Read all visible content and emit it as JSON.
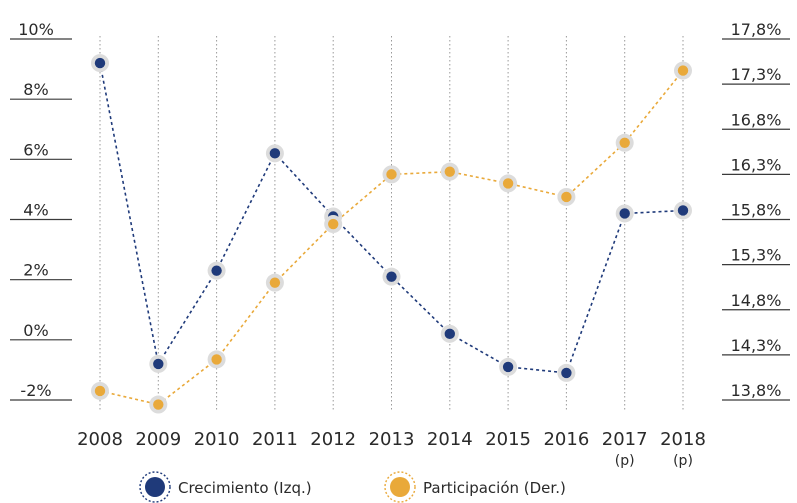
{
  "chart_data": {
    "type": "line",
    "categories": [
      "2008",
      "2009",
      "2010",
      "2011",
      "2012",
      "2013",
      "2014",
      "2015",
      "2016",
      "2017",
      "2018"
    ],
    "category_sublabels": [
      "",
      "",
      "",
      "",
      "",
      "",
      "",
      "",
      "",
      "(p)",
      "(p)"
    ],
    "y_left": {
      "ticks": [
        10,
        8,
        6,
        4,
        2,
        0,
        -2
      ],
      "tick_labels": [
        "10%",
        "8%",
        "6%",
        "4%",
        "2%",
        "0%",
        "-2%"
      ],
      "ylim": [
        -2,
        10
      ]
    },
    "y_right": {
      "ticks": [
        17.8,
        17.3,
        16.8,
        16.3,
        15.8,
        15.3,
        14.8,
        14.3,
        13.8
      ],
      "tick_labels": [
        "17,8%",
        "17,3%",
        "16,8%",
        "16,3%",
        "15,8%",
        "15,3%",
        "14,8%",
        "14,3%",
        "13,8%"
      ],
      "ylim": [
        13.8,
        17.8
      ]
    },
    "series": [
      {
        "name": "Crecimiento (Izq.)",
        "axis": "left",
        "color": "#1f3a7a",
        "values": [
          9.2,
          -0.8,
          2.3,
          6.2,
          4.1,
          2.1,
          0.2,
          -0.9,
          -1.1,
          4.2,
          4.3
        ]
      },
      {
        "name": "Participación (Der.)",
        "axis": "right",
        "color": "#e9a93a",
        "values": [
          13.9,
          13.75,
          14.25,
          15.1,
          15.75,
          16.3,
          16.33,
          16.2,
          16.05,
          16.65,
          17.45
        ]
      }
    ],
    "grid": "vertical dotted",
    "legend": "bottom"
  },
  "legend": {
    "items": [
      {
        "label": "Crecimiento (Izq.)",
        "color": "#1f3a7a"
      },
      {
        "label": "Participación (Der.)",
        "color": "#e9a93a"
      }
    ]
  }
}
